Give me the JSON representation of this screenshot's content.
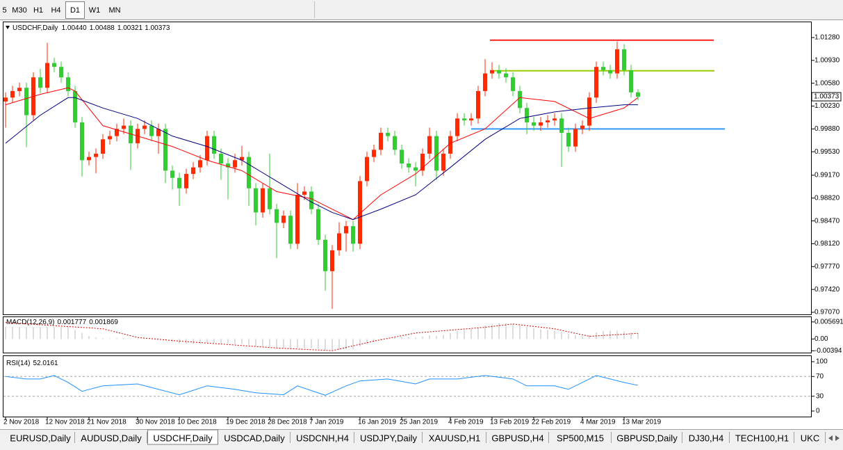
{
  "toolbar": {
    "buttons": [
      "5",
      "M30",
      "H1",
      "H4",
      "D1",
      "W1",
      "MN"
    ],
    "active": 4
  },
  "tabs": {
    "items": [
      "EURUSD,Daily",
      "AUDUSD,Daily",
      "USDCHF,Daily",
      "USDCAD,Daily",
      "USDCNH,H4",
      "USDJPY,Daily",
      "XAUUSD,H1",
      "GBPUSD,H4",
      "SP500,M15",
      "GBPUSD,Daily",
      "DJ30,H4",
      "TECH100,H1",
      "UKC"
    ],
    "active": 2
  },
  "chart_data": {
    "type": "candlestick",
    "title": "USDCHF,Daily",
    "last_value_labels": [
      "1.00440",
      "1.00488",
      "1.00321",
      "1.00373"
    ],
    "up_color": "#ff2a00",
    "down_color": "#33cc33",
    "ylim": [
      0.97038,
      1.01514
    ],
    "yticks": [
      {
        "value": 1.0128,
        "label": "1.01280"
      },
      {
        "value": 1.0093,
        "label": "1.00930"
      },
      {
        "value": 1.0058,
        "label": "1.00580"
      },
      {
        "value": 1.0023,
        "label": "1.00230"
      },
      {
        "value": 0.9988,
        "label": "0.99880"
      },
      {
        "value": 0.9953,
        "label": "0.99530"
      },
      {
        "value": 0.9917,
        "label": "0.99170"
      },
      {
        "value": 0.9882,
        "label": "0.98820"
      },
      {
        "value": 0.9847,
        "label": "0.98470"
      },
      {
        "value": 0.9812,
        "label": "0.98120"
      },
      {
        "value": 0.9777,
        "label": "0.97770"
      },
      {
        "value": 0.9742,
        "label": "0.97420"
      },
      {
        "value": 0.9707,
        "label": "0.97070"
      }
    ],
    "categories": [
      "2 Nov 2018",
      null,
      null,
      null,
      null,
      null,
      "12 Nov 2018",
      null,
      null,
      null,
      null,
      null,
      "21 Nov 2018",
      null,
      null,
      null,
      null,
      null,
      null,
      "30 Nov 2018",
      null,
      null,
      null,
      null,
      null,
      "10 Dec 2018",
      null,
      null,
      null,
      null,
      null,
      null,
      "19 Dec 2018",
      null,
      null,
      null,
      null,
      null,
      "28 Dec 2018",
      null,
      null,
      null,
      null,
      null,
      "7 Jan 2019",
      null,
      null,
      null,
      null,
      null,
      null,
      "16 Jan 2019",
      null,
      null,
      null,
      null,
      null,
      "25 Jan 2019",
      null,
      null,
      null,
      null,
      null,
      null,
      "4 Feb 2019",
      null,
      null,
      null,
      null,
      null,
      "13 Feb 2019",
      null,
      null,
      null,
      null,
      null,
      "22 Feb 2019",
      null,
      null,
      null,
      null,
      null,
      null,
      "4 Mar 2019",
      null,
      null,
      null,
      null,
      null,
      "13 Mar 2019",
      null,
      null
    ],
    "candles": [
      [
        1.003,
        1.0044,
        0.999,
        1.0036
      ],
      [
        1.0036,
        1.0054,
        1.0028,
        1.0046
      ],
      [
        1.0046,
        1.0059,
        1.0038,
        1.0051
      ],
      [
        1.0051,
        1.0059,
        0.996,
        1.0009
      ],
      [
        1.0009,
        1.0075,
        1.0001,
        1.0067
      ],
      [
        1.0067,
        1.008,
        1.0043,
        1.0051
      ],
      [
        1.0051,
        1.012,
        1.0043,
        1.0089
      ],
      [
        1.0089,
        1.0097,
        1.0075,
        1.0083
      ],
      [
        1.0083,
        1.0091,
        1.0059,
        1.0067
      ],
      [
        1.0067,
        1.0075,
        1.0038,
        1.0046
      ],
      [
        1.0046,
        1.0054,
        0.999,
        0.9998
      ],
      [
        0.9998,
        1.0006,
        0.9915,
        0.994
      ],
      [
        0.994,
        0.9953,
        0.9932,
        0.9945
      ],
      [
        0.9945,
        0.9958,
        0.992,
        0.995
      ],
      [
        0.995,
        0.998,
        0.9942,
        0.9972
      ],
      [
        0.9972,
        0.9985,
        0.9964,
        0.9977
      ],
      [
        0.9977,
        0.9996,
        0.9969,
        0.9988
      ],
      [
        0.9988,
        1.0004,
        0.998,
        0.9993
      ],
      [
        0.9993,
        1.0001,
        0.9925,
        0.9966
      ],
      [
        0.9966,
        0.9996,
        0.9958,
        0.9988
      ],
      [
        0.9988,
        1.0001,
        0.998,
        0.9993
      ],
      [
        0.9993,
        1.0001,
        0.9969,
        0.9977
      ],
      [
        0.9977,
        0.9996,
        0.995,
        0.9988
      ],
      [
        0.9988,
        0.9996,
        0.9905,
        0.9924
      ],
      [
        0.9924,
        0.9932,
        0.9895,
        0.9913
      ],
      [
        0.9913,
        0.9921,
        0.987,
        0.9897
      ],
      [
        0.9897,
        0.9927,
        0.9889,
        0.9919
      ],
      [
        0.9919,
        0.9937,
        0.9911,
        0.9929
      ],
      [
        0.9929,
        0.9948,
        0.9921,
        0.994
      ],
      [
        0.994,
        0.9985,
        0.9932,
        0.9977
      ],
      [
        0.9977,
        0.9985,
        0.9942,
        0.995
      ],
      [
        0.995,
        0.9958,
        0.991,
        0.9935
      ],
      [
        0.9935,
        0.9943,
        0.988,
        0.9929
      ],
      [
        0.9929,
        0.995,
        0.9921,
        0.994
      ],
      [
        0.994,
        0.9962,
        0.9932,
        0.9945
      ],
      [
        0.9945,
        0.9953,
        0.987,
        0.9897
      ],
      [
        0.9897,
        0.9905,
        0.984,
        0.986
      ],
      [
        0.986,
        0.9905,
        0.9852,
        0.9897
      ],
      [
        0.9897,
        0.995,
        0.9857,
        0.9865
      ],
      [
        0.9865,
        0.9873,
        0.979,
        0.9844
      ],
      [
        0.9844,
        0.9863,
        0.9836,
        0.9855
      ],
      [
        0.9855,
        0.9863,
        0.9804,
        0.9812
      ],
      [
        0.9812,
        0.9905,
        0.9804,
        0.9887
      ],
      [
        0.9887,
        0.99,
        0.9879,
        0.9892
      ],
      [
        0.9892,
        0.99,
        0.9857,
        0.9865
      ],
      [
        0.9865,
        0.9873,
        0.981,
        0.9818
      ],
      [
        0.9818,
        0.9826,
        0.974,
        0.977
      ],
      [
        0.977,
        0.981,
        0.9712,
        0.9802
      ],
      [
        0.9802,
        0.9845,
        0.9794,
        0.9828
      ],
      [
        0.9828,
        0.9847,
        0.98,
        0.9839
      ],
      [
        0.9839,
        0.9847,
        0.98,
        0.9812
      ],
      [
        0.9812,
        0.9916,
        0.9804,
        0.9908
      ],
      [
        0.9908,
        0.9953,
        0.99,
        0.9945
      ],
      [
        0.9945,
        0.9964,
        0.9937,
        0.9956
      ],
      [
        0.9956,
        0.999,
        0.9948,
        0.9982
      ],
      [
        0.9982,
        0.999,
        0.9969,
        0.9977
      ],
      [
        0.9977,
        0.9985,
        0.9948,
        0.9956
      ],
      [
        0.9956,
        0.9964,
        0.9927,
        0.9935
      ],
      [
        0.9935,
        0.9943,
        0.9921,
        0.9929
      ],
      [
        0.9929,
        0.9937,
        0.99,
        0.9924
      ],
      [
        0.9924,
        0.9958,
        0.9916,
        0.995
      ],
      [
        0.995,
        0.999,
        0.9942,
        0.9977
      ],
      [
        0.9977,
        0.9985,
        0.991,
        0.9924
      ],
      [
        0.9924,
        0.9958,
        0.9916,
        0.995
      ],
      [
        0.995,
        0.9985,
        0.9942,
        0.9977
      ],
      [
        0.9977,
        1.0012,
        0.9969,
        1.0004
      ],
      [
        1.0004,
        1.0012,
        0.9993,
        1.0001
      ],
      [
        1.0001,
        1.0012,
        0.9993,
        1.0004
      ],
      [
        1.0004,
        1.0054,
        0.9996,
        1.0046
      ],
      [
        1.0046,
        1.0095,
        1.0038,
        1.0073
      ],
      [
        1.0073,
        1.009,
        1.0065,
        1.0078
      ],
      [
        1.0078,
        1.0086,
        1.0065,
        1.0073
      ],
      [
        1.0073,
        1.0081,
        1.0059,
        1.0067
      ],
      [
        1.0067,
        1.0075,
        1.0038,
        1.0046
      ],
      [
        1.0046,
        1.0054,
        1.0012,
        1.002
      ],
      [
        1.002,
        1.0028,
        0.998,
        0.9998
      ],
      [
        0.9998,
        1.0006,
        0.9985,
        0.9993
      ],
      [
        0.9993,
        1.0006,
        0.9985,
        0.9998
      ],
      [
        0.9998,
        1.0009,
        0.999,
        1.0001
      ],
      [
        1.0001,
        1.0012,
        0.9993,
        1.0004
      ],
      [
        1.0004,
        1.0012,
        0.993,
        0.9982
      ],
      [
        0.9982,
        0.999,
        0.9953,
        0.9961
      ],
      [
        0.9961,
        0.9996,
        0.9953,
        0.9988
      ],
      [
        0.9988,
        1.0001,
        0.998,
        0.9993
      ],
      [
        0.9993,
        1.0044,
        0.9985,
        1.0036
      ],
      [
        1.0036,
        1.0091,
        1.0028,
        1.0083
      ],
      [
        1.0083,
        1.0091,
        1.007,
        1.0078
      ],
      [
        1.0078,
        1.0086,
        1.0065,
        1.0073
      ],
      [
        1.0073,
        1.0122,
        1.0065,
        1.011
      ],
      [
        1.011,
        1.0118,
        1.007,
        1.0078
      ],
      [
        1.0078,
        1.0086,
        1.0036,
        1.0044
      ],
      [
        1.0044,
        1.00488,
        1.00321,
        1.00373
      ]
    ],
    "moving_averages": [
      {
        "color": "#ff0000",
        "x": [
          0,
          5,
          9,
          10,
          14,
          19,
          24,
          29,
          34,
          39,
          44,
          47,
          50,
          54,
          59,
          64,
          69,
          74,
          79,
          84,
          89,
          91
        ],
        "values": [
          1.0025,
          1.0041,
          1.0051,
          1.0046,
          0.9993,
          0.9977,
          0.9961,
          0.994,
          0.9924,
          0.9892,
          0.9881,
          0.9865,
          0.9849,
          0.9887,
          0.9919,
          0.9966,
          0.9988,
          1.0036,
          1.003,
          1.0004,
          1.002,
          1.0036
        ]
      },
      {
        "color": "#000080",
        "x": [
          0,
          5,
          9,
          10,
          14,
          19,
          24,
          29,
          34,
          39,
          44,
          47,
          50,
          54,
          59,
          64,
          69,
          74,
          79,
          84,
          89,
          91
        ],
        "values": [
          0.9966,
          1.0009,
          1.0036,
          1.0036,
          1.002,
          1.0004,
          0.9977,
          0.9961,
          0.994,
          0.9908,
          0.9876,
          0.986,
          0.9849,
          0.9865,
          0.9887,
          0.9929,
          0.9972,
          1.0004,
          1.0014,
          1.002,
          1.0025,
          1.0025
        ]
      }
    ],
    "levels": [
      {
        "value": 1.0124,
        "color": "#ff2020"
      },
      {
        "value": 1.0077,
        "color": "#99cc00"
      },
      {
        "value": 0.9988,
        "color": "#3399ff"
      }
    ],
    "indicators": [
      {
        "type": "macd",
        "title": "MACD(12,26,9)",
        "histogram": [
          0.004,
          0.004,
          0.004,
          0.004,
          0.004,
          0.004,
          0.004,
          0.004,
          0.004,
          0.004,
          0.003,
          0.002,
          0.001,
          0.0005,
          0.0003,
          0.0002,
          0.0003,
          0.0003,
          0.0002,
          0.0002,
          0.0002,
          0.0001,
          0.0001,
          -0.0005,
          -0.001,
          -0.0015,
          -0.0015,
          -0.0016,
          -0.0016,
          -0.0012,
          -0.0013,
          -0.0015,
          -0.0016,
          -0.0017,
          -0.0017,
          -0.002,
          -0.0024,
          -0.0025,
          -0.0027,
          -0.003,
          -0.003,
          -0.0033,
          -0.003,
          -0.003,
          -0.003,
          -0.0033,
          -0.0038,
          -0.0038,
          -0.0036,
          -0.0034,
          -0.0034,
          -0.0025,
          -0.0018,
          -0.001,
          -0.0003,
          0.0002,
          0.0005,
          0.0006,
          0.0006,
          0.0005,
          0.0008,
          0.0012,
          0.001,
          0.0014,
          0.002,
          0.0027,
          0.003,
          0.0033,
          0.0038,
          0.0045,
          0.005,
          0.0052,
          0.0052,
          0.005,
          0.0045,
          0.004,
          0.0036,
          0.0032,
          0.003,
          0.0028,
          0.0024,
          0.0018,
          0.0013,
          0.001,
          0.0014,
          0.0022,
          0.0026,
          0.0028,
          0.0028,
          0.0025,
          0.0021,
          0.001777
        ],
        "histogram_color": "#b8b8b8",
        "signal": {
          "color": "#cc0000",
          "x": [
            0,
            14,
            19,
            25,
            39,
            47,
            53,
            59,
            69,
            73,
            79,
            84,
            91
          ],
          "values": [
            0.0055,
            0.0034,
            0.0005,
            -0.0007,
            -0.003,
            -0.0039,
            -0.0007,
            0.002,
            0.0039,
            0.005,
            0.0034,
            0.0009,
            0.001869
          ]
        },
        "ylim": [
          -0.00455,
          0.00728
        ],
        "yticks": [
          0.005691,
          {
            "value": 0,
            "label": "0.00"
          },
          -0.00394
        ]
      },
      {
        "type": "rsi",
        "title": "RSI(14)",
        "color": "#1e90ff",
        "x": [
          0,
          3,
          5,
          7,
          9,
          11,
          14,
          19,
          25,
          29,
          33,
          36,
          40,
          42,
          46,
          49,
          51,
          55,
          59,
          61,
          65,
          69,
          73,
          75,
          79,
          81,
          85,
          87,
          89,
          91
        ],
        "values": [
          70,
          65,
          65,
          72,
          58,
          40,
          51,
          55,
          33,
          51,
          44,
          37,
          33,
          51,
          32,
          51,
          61,
          65,
          55,
          65,
          65,
          72,
          65,
          51,
          51,
          44,
          72,
          65,
          58,
          52.0161
        ],
        "levels": [
          70,
          30
        ],
        "ylim": [
          -12.7,
          111.3
        ],
        "yticks": [
          100,
          70,
          30,
          0
        ]
      }
    ]
  }
}
